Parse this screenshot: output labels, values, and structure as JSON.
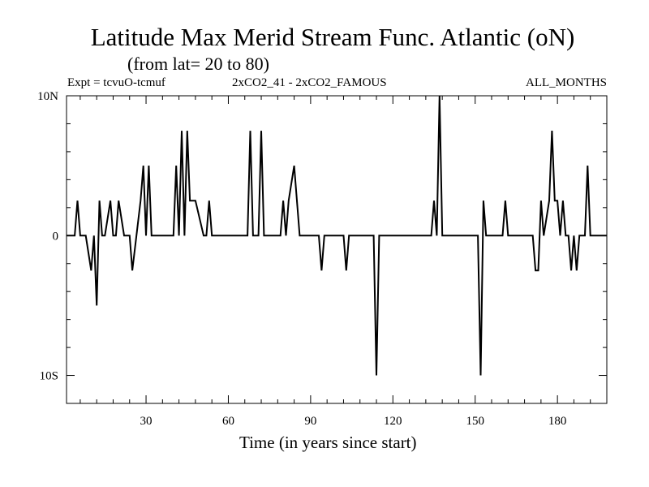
{
  "chart_data": {
    "type": "line",
    "title": "Latitude Max Merid Stream Func. Atlantic (oN)",
    "subtitle": "(from lat= 20 to 80)",
    "expt_label": "Expt = tcvuO-tcmuf",
    "comparison_label": "2xCO2_41 - 2xCO2_FAMOUS",
    "months_label": "ALL_MONTHS",
    "xlabel": "Time (in years since start)",
    "ylabel": "",
    "xlim": [
      1,
      198
    ],
    "ylim": [
      -12,
      10
    ],
    "x_ticks": [
      {
        "value": 30,
        "label": "30"
      },
      {
        "value": 60,
        "label": "60"
      },
      {
        "value": 90,
        "label": "90"
      },
      {
        "value": 120,
        "label": "120"
      },
      {
        "value": 150,
        "label": "150"
      },
      {
        "value": 180,
        "label": "180"
      }
    ],
    "y_ticks": [
      {
        "value": 10,
        "label": "10N"
      },
      {
        "value": 0,
        "label": "0"
      },
      {
        "value": -10,
        "label": "10S"
      }
    ],
    "grid": false,
    "series": [
      {
        "x": [
          1,
          4,
          5,
          6,
          8,
          10,
          11,
          12,
          13,
          14,
          15,
          17,
          18,
          19,
          20,
          22,
          24,
          25,
          28,
          29,
          30,
          31,
          32,
          40,
          41,
          42,
          43,
          44,
          45,
          46,
          47,
          48,
          51,
          52,
          53,
          54,
          55,
          67,
          68,
          69,
          71,
          72,
          73,
          79,
          80,
          81,
          82,
          84,
          86,
          93,
          94,
          95,
          102,
          103,
          104,
          113,
          114,
          115,
          134,
          135,
          136,
          137,
          138,
          151,
          152,
          153,
          154,
          160,
          161,
          162,
          171,
          172,
          173,
          174,
          175,
          177,
          178,
          179,
          180,
          181,
          182,
          183,
          184,
          185,
          186,
          187,
          188,
          189,
          190,
          191,
          192,
          193,
          194,
          198
        ],
        "values": [
          0,
          0,
          2.5,
          0,
          0,
          -2.5,
          0,
          -5,
          2.5,
          0,
          0,
          2.5,
          0,
          0,
          2.5,
          0,
          0,
          -2.5,
          2.5,
          5,
          0,
          5,
          0,
          0,
          5,
          0,
          7.5,
          0,
          7.5,
          2.5,
          2.5,
          2.5,
          0,
          0,
          2.5,
          0,
          0,
          0,
          7.5,
          0,
          0,
          7.5,
          0,
          0,
          2.5,
          0,
          2.5,
          5,
          0,
          0,
          -2.5,
          0,
          0,
          -2.5,
          0,
          0,
          -10,
          0,
          0,
          2.5,
          0,
          10,
          0,
          0,
          -10,
          2.5,
          0,
          0,
          2.5,
          0,
          0,
          -2.5,
          -2.5,
          2.5,
          0,
          2.5,
          7.5,
          2.5,
          2.5,
          0,
          2.5,
          0,
          0,
          -2.5,
          0,
          -2.5,
          0,
          0,
          0,
          5,
          0,
          0,
          0,
          0
        ]
      }
    ]
  }
}
